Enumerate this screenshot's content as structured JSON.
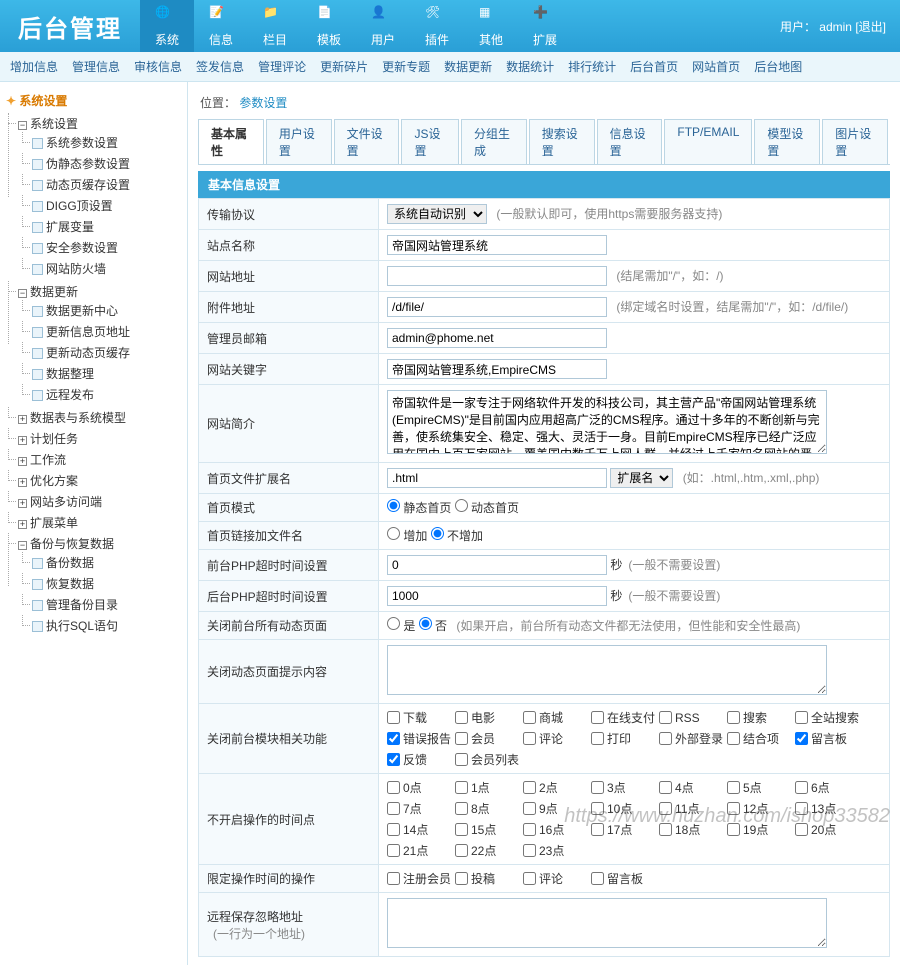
{
  "header": {
    "logo": "后台管理",
    "user_label": "用户：",
    "username": "admin",
    "logout": "[退出]",
    "nav": [
      {
        "label": "系统",
        "icon": "globe",
        "active": true
      },
      {
        "label": "信息",
        "icon": "edit"
      },
      {
        "label": "栏目",
        "icon": "folder"
      },
      {
        "label": "模板",
        "icon": "file"
      },
      {
        "label": "用户",
        "icon": "user"
      },
      {
        "label": "插件",
        "icon": "tool"
      },
      {
        "label": "其他",
        "icon": "grid"
      },
      {
        "label": "扩展",
        "icon": "plus"
      }
    ]
  },
  "subnav": [
    "增加信息",
    "管理信息",
    "审核信息",
    "签发信息",
    "管理评论",
    "更新碎片",
    "更新专题",
    "数据更新",
    "数据统计",
    "排行统计",
    "后台首页",
    "网站首页",
    "后台地图"
  ],
  "sidebar": {
    "title": "系统设置",
    "nodes": [
      {
        "label": "系统设置",
        "open": true,
        "children": [
          {
            "label": "系统参数设置"
          },
          {
            "label": "伪静态参数设置"
          },
          {
            "label": "动态页缓存设置"
          },
          {
            "label": "DIGG顶设置"
          },
          {
            "label": "扩展变量"
          },
          {
            "label": "安全参数设置"
          },
          {
            "label": "网站防火墙"
          }
        ]
      },
      {
        "label": "数据更新",
        "open": true,
        "children": [
          {
            "label": "数据更新中心"
          },
          {
            "label": "更新信息页地址"
          },
          {
            "label": "更新动态页缓存"
          },
          {
            "label": "数据整理"
          },
          {
            "label": "远程发布"
          }
        ]
      },
      {
        "label": "数据表与系统模型",
        "open": false
      },
      {
        "label": "计划任务",
        "open": false
      },
      {
        "label": "工作流",
        "open": false
      },
      {
        "label": "优化方案",
        "open": false
      },
      {
        "label": "网站多访问端",
        "open": false
      },
      {
        "label": "扩展菜单",
        "open": false
      },
      {
        "label": "备份与恢复数据",
        "open": true,
        "children": [
          {
            "label": "备份数据"
          },
          {
            "label": "恢复数据"
          },
          {
            "label": "管理备份目录"
          },
          {
            "label": "执行SQL语句"
          }
        ]
      }
    ]
  },
  "breadcrumb": {
    "label": "位置：",
    "current": "参数设置"
  },
  "tabs": [
    "基本属性",
    "用户设置",
    "文件设置",
    "JS设置",
    "分组生成",
    "搜索设置",
    "信息设置",
    "FTP/EMAIL",
    "模型设置",
    "图片设置"
  ],
  "active_tab": 0,
  "section_title": "基本信息设置",
  "form": {
    "protocol": {
      "label": "传输协议",
      "value": "系统自动识别",
      "hint": "(一般默认即可，使用https需要服务器支持)"
    },
    "sitename": {
      "label": "站点名称",
      "value": "帝国网站管理系统"
    },
    "siteurl": {
      "label": "网站地址",
      "value": "",
      "hint": "(结尾需加\"/\"，如：/)"
    },
    "fileurl": {
      "label": "附件地址",
      "value": "/d/file/",
      "hint": "(绑定域名时设置，结尾需加\"/\"，如：/d/file/)"
    },
    "adminemail": {
      "label": "管理员邮箱",
      "value": "admin@phome.net"
    },
    "keywords": {
      "label": "网站关键字",
      "value": "帝国网站管理系统,EmpireCMS"
    },
    "intro": {
      "label": "网站简介",
      "value": "帝国软件是一家专注于网络软件开发的科技公司，其主营产品\"帝国网站管理系统(EmpireCMS)\"是目前国内应用超高广泛的CMS程序。通过十多年的不断创新与完善，使系统集安全、稳定、强大、灵活于一身。目前EmpireCMS程序已经广泛应用在国内上百万家网站，覆盖国内数千万上网人群，并经过上千家知名网站的严格检测，被称为国内超高安全、"
    },
    "indexext": {
      "label": "首页文件扩展名",
      "value": ".html",
      "selopt": "扩展名",
      "hint": "(如：.html,.htm,.xml,.php)"
    },
    "indexmode": {
      "label": "首页模式",
      "opt1": "静态首页",
      "opt2": "动态首页"
    },
    "linkaddfile": {
      "label": "首页链接加文件名",
      "opt1": "增加",
      "opt2": "不增加"
    },
    "fronttimeout": {
      "label": "前台PHP超时时间设置",
      "value": "0",
      "unit": "秒",
      "hint": "(一般不需要设置)"
    },
    "backtimeout": {
      "label": "后台PHP超时时间设置",
      "value": "1000",
      "unit": "秒",
      "hint": "(一般不需要设置)"
    },
    "closefront": {
      "label": "关闭前台所有动态页面",
      "opt1": "是",
      "opt2": "否",
      "hint": "(如果开启，前台所有动态文件都无法使用，但性能和安全性最高)"
    },
    "closehint": {
      "label": "关闭动态页面提示内容",
      "value": ""
    },
    "closemods": {
      "label": "关闭前台模块相关功能",
      "items": [
        "下载",
        "电影",
        "商城",
        "在线支付",
        "RSS",
        "搜索",
        "全站搜索",
        "错误报告",
        "会员",
        "评论",
        "打印",
        "外部登录",
        "结合项",
        "留言板",
        "反馈",
        "会员列表"
      ],
      "checked": [
        7,
        13,
        14
      ]
    },
    "hours": {
      "label": "不开启操作的时间点",
      "items": [
        "0点",
        "1点",
        "2点",
        "3点",
        "4点",
        "5点",
        "6点",
        "7点",
        "8点",
        "9点",
        "10点",
        "11点",
        "12点",
        "13点",
        "14点",
        "15点",
        "16点",
        "17点",
        "18点",
        "19点",
        "20点",
        "21点",
        "22点",
        "23点"
      ]
    },
    "limitops": {
      "label": "限定操作时间的操作",
      "items": [
        "注册会员",
        "投稿",
        "评论",
        "留言板"
      ]
    },
    "ignorepath": {
      "label": "远程保存忽略地址",
      "sub": "(一行为一个地址)",
      "value": ""
    }
  },
  "watermark": "https://www.huzhan.com/ishop33582",
  "colors": {
    "topbar": "#2a9fd6",
    "accent": "#1e8bc3",
    "border": "#d6e6ef"
  }
}
